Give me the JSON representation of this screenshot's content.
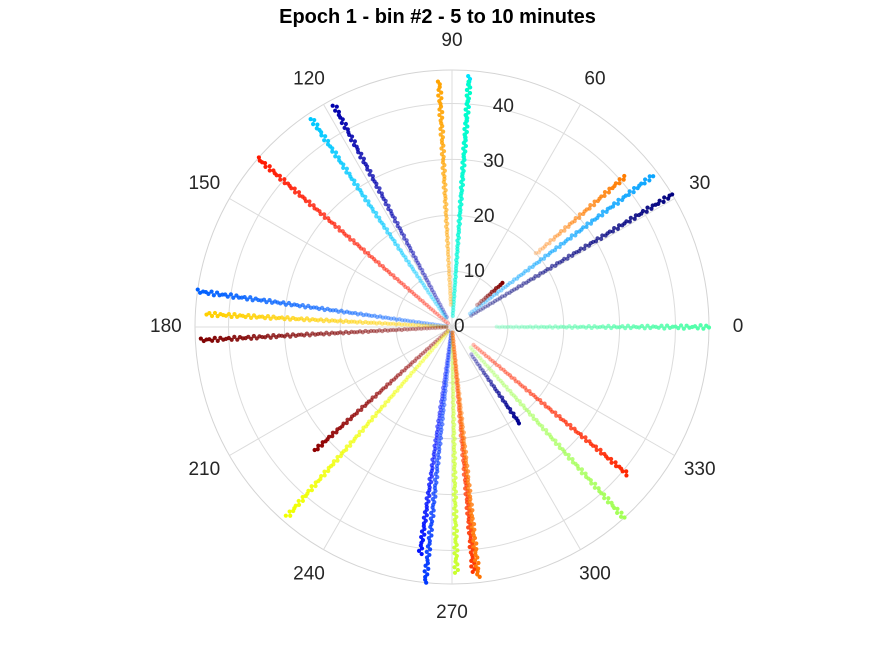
{
  "chart_data": {
    "type": "scatter",
    "subtype": "polar",
    "title": "Epoch 1 - bin #2 - 5 to 10 minutes",
    "theta_unit": "degrees",
    "theta_ticks": [
      0,
      30,
      60,
      90,
      120,
      150,
      180,
      210,
      240,
      270,
      300,
      330
    ],
    "r_ticks": [
      0,
      10,
      20,
      30,
      40
    ],
    "rlim": [
      0,
      46
    ],
    "grid": true,
    "series": [
      {
        "theta": 0,
        "r": [
          8,
          46
        ],
        "color": "#4dffa8"
      },
      {
        "theta": 31,
        "r": [
          4,
          46
        ],
        "color": "#00007f"
      },
      {
        "theta": 37,
        "r": [
          4,
          45
        ],
        "color": "#0aa5ff"
      },
      {
        "theta": 41,
        "r": [
          20,
          41
        ],
        "color": "#ff7c00"
      },
      {
        "theta": 41,
        "r": [
          6,
          12
        ],
        "color": "#7f0000"
      },
      {
        "theta": 86,
        "r": [
          2,
          45
        ],
        "color": "#00e5ff"
      },
      {
        "theta": 86,
        "r": [
          2,
          44
        ],
        "color": "#00ffc5"
      },
      {
        "theta": 93,
        "r": [
          4,
          44
        ],
        "color": "#ffa300"
      },
      {
        "theta": 118,
        "r": [
          2,
          45
        ],
        "color": "#0000ad"
      },
      {
        "theta": 124,
        "r": [
          2,
          45
        ],
        "color": "#00c8ff"
      },
      {
        "theta": 139,
        "r": [
          1,
          46
        ],
        "color": "#ff1800"
      },
      {
        "theta": 172,
        "r": [
          1,
          46
        ],
        "color": "#0060ff"
      },
      {
        "theta": 177,
        "r": [
          1,
          44
        ],
        "color": "#ffd000"
      },
      {
        "theta": 183,
        "r": [
          1,
          45
        ],
        "color": "#800000"
      },
      {
        "theta": 222,
        "r": [
          1,
          33
        ],
        "color": "#8f0000"
      },
      {
        "theta": 229,
        "r": [
          1,
          45
        ],
        "color": "#f0ff00"
      },
      {
        "theta": 262,
        "r": [
          1,
          41
        ],
        "color": "#0011ff"
      },
      {
        "theta": 264,
        "r": [
          1,
          46
        ],
        "color": "#0038ff"
      },
      {
        "theta": 271,
        "r": [
          1,
          44
        ],
        "color": "#c8ff2e"
      },
      {
        "theta": 275,
        "r": [
          1,
          44
        ],
        "color": "#ff3400"
      },
      {
        "theta": 276,
        "r": [
          1,
          45
        ],
        "color": "#ff7300"
      },
      {
        "theta": 305,
        "r": [
          6,
          21
        ],
        "color": "#000090"
      },
      {
        "theta": 312,
        "r": [
          5,
          46
        ],
        "color": "#a2ff55"
      },
      {
        "theta": 320,
        "r": [
          5,
          41
        ],
        "color": "#ff2600"
      }
    ]
  }
}
